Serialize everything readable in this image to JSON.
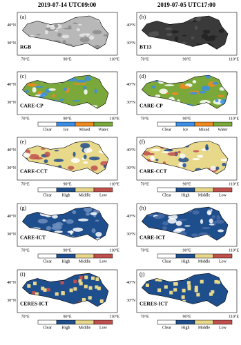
{
  "columns": [
    "2019-07-14 UTC09:00",
    "2019-07-05 UTC17:00"
  ],
  "panels": [
    {
      "label": "(a)",
      "name": "RGB",
      "lat_labels": [
        "40°N",
        "30°N"
      ],
      "lon_labels": [
        "70°E",
        "90°E",
        "110°E"
      ]
    },
    {
      "label": "(b)",
      "name": "BT13",
      "lat_labels": [
        "40°N",
        "30°N"
      ],
      "lon_labels": [
        "70°E",
        "90°E",
        "110°E"
      ]
    },
    {
      "label": "(c)",
      "name": "CARE-CP",
      "lat_labels": [
        "40°N",
        "30°N"
      ],
      "lon_labels": [
        "70°E",
        "90°E",
        "110°E"
      ],
      "legend": [
        {
          "label": "Clear",
          "color": "#ffffff"
        },
        {
          "label": "Ice",
          "color": "#3a8ee6"
        },
        {
          "label": "Mixed",
          "color": "#f08a1e"
        },
        {
          "label": "Water",
          "color": "#7aa83a"
        }
      ]
    },
    {
      "label": "(d)",
      "name": "CARE-CP",
      "lat_labels": [
        "40°N",
        "30°N"
      ],
      "lon_labels": [
        "70°E",
        "90°E",
        "110°E"
      ],
      "legend": [
        {
          "label": "Clear",
          "color": "#ffffff"
        },
        {
          "label": "Ice",
          "color": "#3a8ee6"
        },
        {
          "label": "Mixed",
          "color": "#f08a1e"
        },
        {
          "label": "Water",
          "color": "#7aa83a"
        }
      ]
    },
    {
      "label": "(e)",
      "name": "CARE-CCT",
      "lat_labels": [
        "40°N",
        "30°N"
      ],
      "lon_labels": [
        "70°E",
        "90°E",
        "110°E"
      ],
      "legend": [
        {
          "label": "Clear",
          "color": "#ffffff"
        },
        {
          "label": "High",
          "color": "#1f4e8c"
        },
        {
          "label": "Middle",
          "color": "#e8d88a"
        },
        {
          "label": "Low",
          "color": "#c0504d"
        }
      ]
    },
    {
      "label": "(f)",
      "name": "CARE-CCT",
      "lat_labels": [
        "40°N",
        "30°N"
      ],
      "lon_labels": [
        "70°E",
        "90°E",
        "110°E"
      ],
      "legend": [
        {
          "label": "Clear",
          "color": "#ffffff"
        },
        {
          "label": "High",
          "color": "#1f4e8c"
        },
        {
          "label": "Middle",
          "color": "#e8d88a"
        },
        {
          "label": "Low",
          "color": "#c0504d"
        }
      ]
    },
    {
      "label": "(g)",
      "name": "CARE-ICT",
      "lat_labels": [
        "40°N",
        "30°N"
      ],
      "lon_labels": [
        "70°E",
        "90°E",
        "110°E"
      ],
      "legend": [
        {
          "label": "Clear",
          "color": "#ffffff"
        },
        {
          "label": "High",
          "color": "#1f4e8c"
        },
        {
          "label": "Middle",
          "color": "#e8d88a"
        },
        {
          "label": "Low",
          "color": "#c0504d"
        }
      ]
    },
    {
      "label": "(h)",
      "name": "CARE-ICT",
      "lat_labels": [
        "40°N",
        "30°N"
      ],
      "lon_labels": [
        "70°E",
        "90°E",
        "110°E"
      ],
      "legend": [
        {
          "label": "Clear",
          "color": "#ffffff"
        },
        {
          "label": "High",
          "color": "#1f4e8c"
        },
        {
          "label": "Middle",
          "color": "#e8d88a"
        },
        {
          "label": "Low",
          "color": "#c0504d"
        }
      ]
    },
    {
      "label": "(i)",
      "name": "CERES-ICT",
      "lat_labels": [
        "40°N",
        "30°N"
      ],
      "lon_labels": [
        "70°E",
        "90°E",
        "110°E"
      ],
      "legend": [
        {
          "label": "Clear",
          "color": "#ffffff"
        },
        {
          "label": "High",
          "color": "#1f4e8c"
        },
        {
          "label": "Middle",
          "color": "#e8d88a"
        },
        {
          "label": "Low",
          "color": "#c0504d"
        }
      ]
    },
    {
      "label": "(j)",
      "name": "CERES-ICT",
      "lat_labels": [
        "40°N",
        "30°N"
      ],
      "lon_labels": [
        "70°E",
        "90°E",
        "110°E"
      ],
      "legend": [
        {
          "label": "Clear",
          "color": "#ffffff"
        },
        {
          "label": "High",
          "color": "#1f4e8c"
        },
        {
          "label": "Middle",
          "color": "#e8d88a"
        },
        {
          "label": "Low",
          "color": "#c0504d"
        }
      ]
    }
  ]
}
